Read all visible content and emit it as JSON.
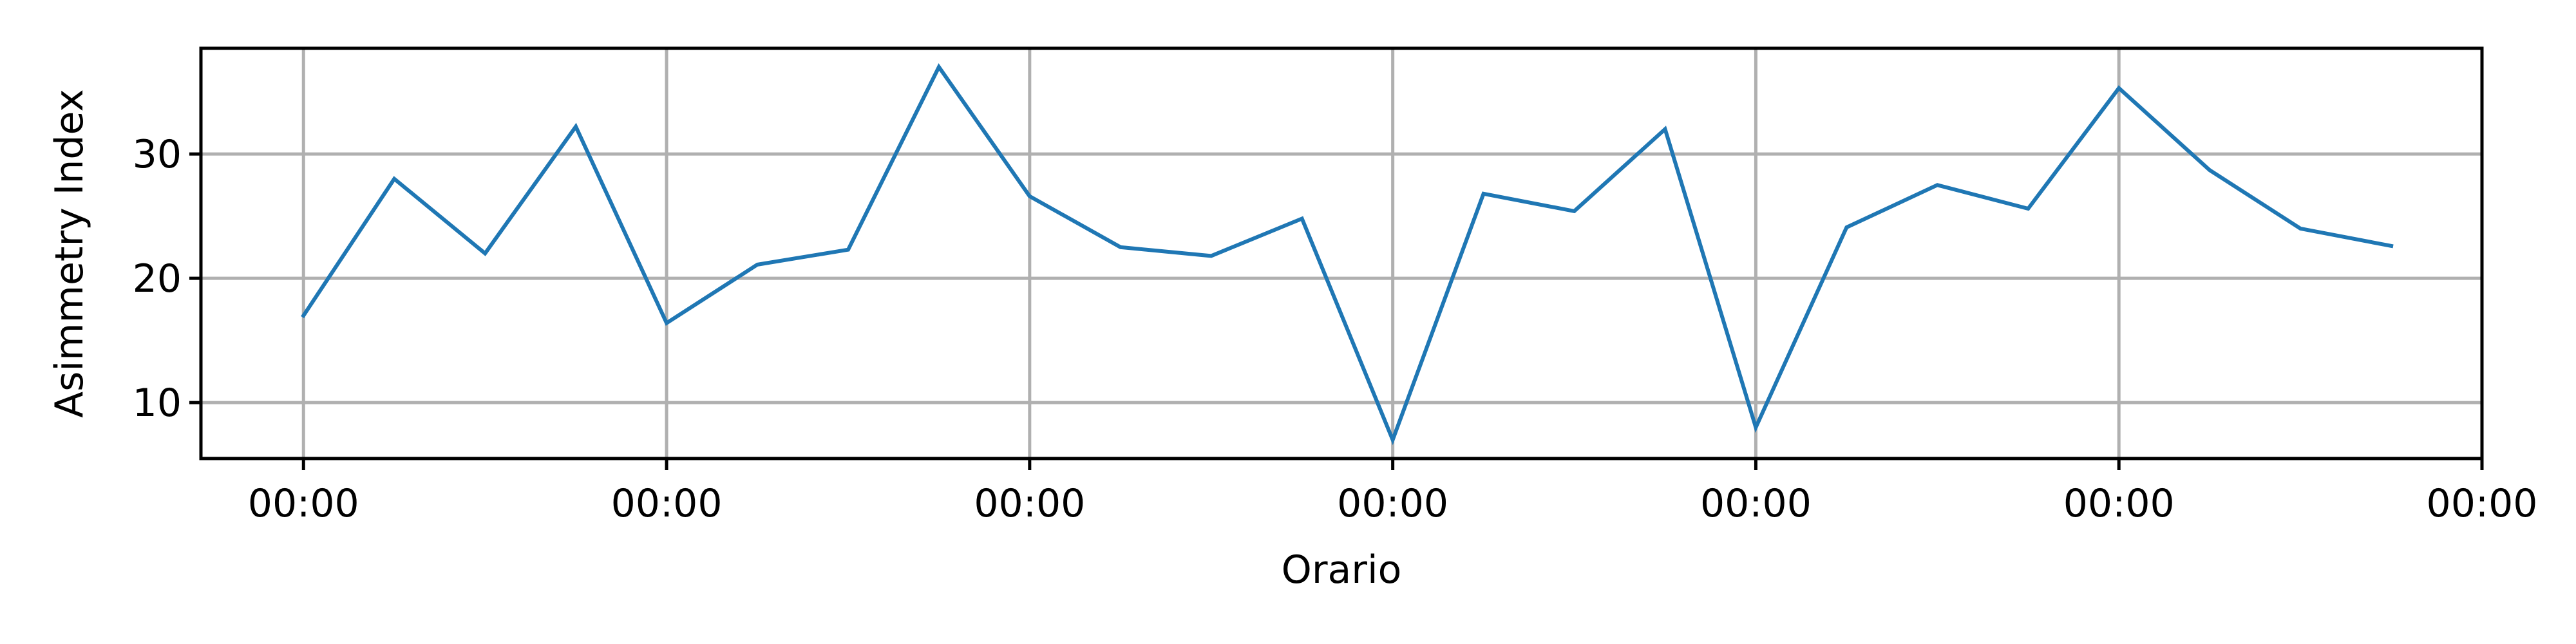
{
  "chart_data": {
    "type": "line",
    "xlabel": "Orario",
    "ylabel": "Asimmetry Index",
    "x_tick_labels": [
      "00:00",
      "00:00",
      "00:00",
      "00:00",
      "00:00",
      "00:00",
      "00:00"
    ],
    "y_ticks": [
      10,
      20,
      30
    ],
    "xlim": [
      -1.13,
      24.0
    ],
    "ylim": [
      5.5,
      38.5
    ],
    "grid": true,
    "series": [
      {
        "color": "#1f77b4",
        "x": [
          0,
          1,
          2,
          3,
          4,
          5,
          6,
          7,
          8,
          9,
          10,
          11,
          12,
          13,
          14,
          15,
          16,
          17,
          18,
          19,
          20,
          21,
          22,
          23
        ],
        "values": [
          17.0,
          28.0,
          22.0,
          32.2,
          16.4,
          21.1,
          22.3,
          37.0,
          26.6,
          22.5,
          21.8,
          24.8,
          7.0,
          26.8,
          25.4,
          32.0,
          8.0,
          24.1,
          27.5,
          25.6,
          35.3,
          28.7,
          24.0,
          22.6
        ]
      }
    ]
  }
}
